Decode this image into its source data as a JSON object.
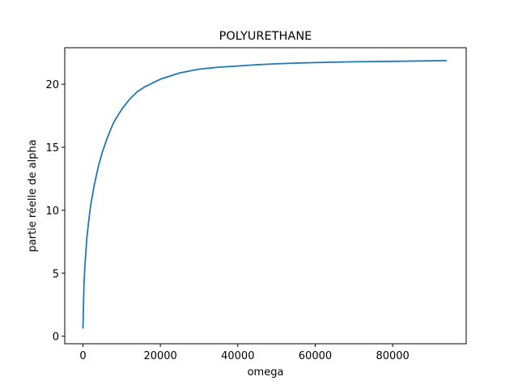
{
  "chart_data": {
    "type": "line",
    "title": "POLYURETHANE",
    "xlabel": "omega",
    "ylabel": "partie réelle de alpha",
    "xlim": [
      -4700,
      99000
    ],
    "ylim": [
      -0.6,
      22.9
    ],
    "xticks": [
      0,
      20000,
      40000,
      60000,
      80000
    ],
    "xtick_labels": [
      "0",
      "20000",
      "40000",
      "60000",
      "80000"
    ],
    "yticks": [
      0,
      5,
      10,
      15,
      20
    ],
    "ytick_labels": [
      "0",
      "5",
      "10",
      "15",
      "20"
    ],
    "grid": false,
    "series": [
      {
        "color": "#1f77b4",
        "x": [
          0,
          250,
          500,
          1000,
          1500,
          2000,
          3000,
          4000,
          5000,
          6000,
          7000,
          8000,
          10000,
          12000,
          14000,
          16000,
          18000,
          20000,
          25000,
          30000,
          35000,
          40000,
          45000,
          50000,
          55000,
          60000,
          65000,
          70000,
          75000,
          80000,
          85000,
          90000,
          94000
        ],
        "y": [
          0.6,
          4.0,
          5.6,
          7.8,
          9.2,
          10.4,
          12.1,
          13.5,
          14.6,
          15.5,
          16.3,
          17.0,
          18.0,
          18.8,
          19.4,
          19.8,
          20.1,
          20.4,
          20.9,
          21.2,
          21.35,
          21.45,
          21.55,
          21.62,
          21.68,
          21.72,
          21.75,
          21.78,
          21.8,
          21.82,
          21.84,
          21.86,
          21.88
        ]
      }
    ]
  }
}
